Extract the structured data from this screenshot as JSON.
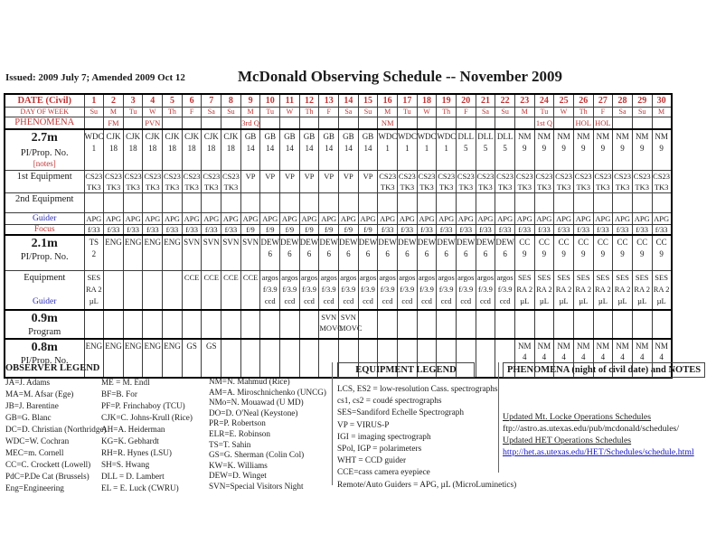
{
  "colors": {
    "red": "#c03434",
    "blue": "#2a2ab8",
    "link": "#1414c8",
    "ink": "#1c1c1c"
  },
  "header": {
    "issued": "Issued: 2009 July 7; Amended 2009 Oct 12",
    "title": "McDonald Observing Schedule -- November 2009"
  },
  "schedule": {
    "rows": [
      {
        "id": "date",
        "cls": "r-date",
        "label": [
          {
            "t": "DATE (Civil)",
            "c": "lr"
          }
        ],
        "cells": [
          "1",
          "2",
          "3",
          "4",
          "5",
          "6",
          "7",
          "8",
          "9",
          "10",
          "11",
          "12",
          "13",
          "14",
          "15",
          "16",
          "17",
          "18",
          "19",
          "20",
          "21",
          "22",
          "23",
          "24",
          "25",
          "26",
          "27",
          "28",
          "29",
          "30"
        ]
      },
      {
        "id": "dow",
        "cls": "r-dow",
        "label": [
          {
            "t": "DAY OF WEEK",
            "c": "lr xs"
          }
        ],
        "cells": [
          "Su",
          "M",
          "Tu",
          "W",
          "Th",
          "F",
          "Sa",
          "Su",
          "M",
          "Tu",
          "W",
          "Th",
          "F",
          "Sa",
          "Su",
          "M",
          "Tu",
          "W",
          "Th",
          "F",
          "Sa",
          "Su",
          "M",
          "Tu",
          "W",
          "Th",
          "F",
          "Sa",
          "Su",
          "M"
        ]
      },
      {
        "id": "phenomena",
        "cls": "r-phen",
        "label": [
          {
            "t": "PHENOMENA",
            "c": "lr"
          }
        ],
        "cells": [
          "",
          "FM",
          "",
          "PVN",
          "",
          "",
          "",
          "",
          "3rd Q",
          "",
          "",
          "",
          "",
          "",
          "",
          "NM",
          "",
          "",
          "",
          "",
          "",
          "",
          "",
          "1st Q",
          "",
          "HOL",
          "HOL",
          "",
          "",
          ""
        ]
      },
      {
        "id": "pi27",
        "cls": "r-pi27",
        "label": [
          {
            "t": "2.7m",
            "c": "lbig"
          },
          {
            "t": "PI/Prop. No.",
            "c": "lmed"
          },
          {
            "t": "[notes]",
            "c": "lnotes"
          }
        ],
        "cells": [
          "WDC\n1",
          "CJK\n18",
          "CJK\n18",
          "CJK\n18",
          "CJK\n18",
          "CJK\n18",
          "CJK\n18",
          "CJK\n18",
          "GB\n14",
          "GB\n14",
          "GB\n14",
          "GB\n14",
          "GB\n14",
          "GB\n14",
          "GB\n14",
          "WDC\n1",
          "WDC\n1",
          "WDC\n1",
          "WDC\n1",
          "DLL\n5",
          "DLL\n5",
          "DLL\n5",
          "NM\n9",
          "NM\n9",
          "NM\n9",
          "NM\n9",
          "NM\n9",
          "NM\n9",
          "NM\n9",
          "NM\n9"
        ]
      },
      {
        "id": "eq1",
        "cls": "r-eq1",
        "label": [
          {
            "t": "1st Equipment",
            "c": "lmed"
          }
        ],
        "cells": [
          "CS23\nTK3",
          "CS23\nTK3",
          "CS23\nTK3",
          "CS23\nTK3",
          "CS23\nTK3",
          "CS23\nTK3",
          "CS23\nTK3",
          "CS23\nTK3",
          "VP",
          "VP",
          "VP",
          "VP",
          "VP",
          "VP",
          "VP",
          "CS23\nTK3",
          "CS23\nTK3",
          "CS23\nTK3",
          "CS23\nTK3",
          "CS23\nTK3",
          "CS23\nTK3",
          "CS23\nTK3",
          "CS23\nTK3",
          "CS23\nTK3",
          "CS23\nTK3",
          "CS23\nTK3",
          "CS23\nTK3",
          "CS23\nTK3",
          "CS23\nTK3",
          "CS23\nTK3"
        ]
      },
      {
        "id": "eq2",
        "cls": "r-eq2",
        "label": [
          {
            "t": "2nd Equipment",
            "c": "lmed"
          }
        ],
        "cells": [
          "",
          "",
          "",
          "",
          "",
          "",
          "",
          "",
          "",
          "",
          "",
          "",
          "",
          "",
          "",
          "",
          "",
          "",
          "",
          "",
          "",
          "",
          "",
          "",
          "",
          "",
          "",
          "",
          "",
          ""
        ]
      },
      {
        "id": "guider27",
        "cls": "r-guider",
        "label": [
          {
            "t": "Guider",
            "c": "lblue"
          }
        ],
        "cells": [
          "APG",
          "APG",
          "APG",
          "APG",
          "APG",
          "APG",
          "APG",
          "APG",
          "APG",
          "APG",
          "APG",
          "APG",
          "APG",
          "APG",
          "APG",
          "APG",
          "APG",
          "APG",
          "APG",
          "APG",
          "APG",
          "APG",
          "APG",
          "APG",
          "APG",
          "APG",
          "APG",
          "APG",
          "APG",
          "APG"
        ]
      },
      {
        "id": "focus27",
        "cls": "r-focus",
        "label": [
          {
            "t": "Focus",
            "c": "lfocus"
          }
        ],
        "cells": [
          "f/33",
          "f/33",
          "f/33",
          "f/33",
          "f/33",
          "f/33",
          "f/33",
          "f/33",
          "f/9",
          "f/9",
          "f/9",
          "f/9",
          "f/9",
          "f/9",
          "f/9",
          "f/33",
          "f/33",
          "f/33",
          "f/33",
          "f/33",
          "f/33",
          "f/33",
          "f/33",
          "f/33",
          "f/33",
          "f/33",
          "f/33",
          "f/33",
          "f/33",
          "f/33"
        ]
      },
      {
        "id": "pi21",
        "cls": "r-pi21",
        "label": [
          {
            "t": "2.1m",
            "c": "lbig"
          },
          {
            "t": "PI/Prop. No.",
            "c": "lmed"
          }
        ],
        "cells": [
          "TS\n2",
          "ENG",
          "ENG",
          "ENG",
          "ENG",
          "SVN",
          "SVN",
          "SVN",
          "SVN",
          "DEW\n6",
          "DEW\n6",
          "DEW\n6",
          "DEW\n6",
          "DEW\n6",
          "DEW\n6",
          "DEW\n6",
          "DEW\n6",
          "DEW\n6",
          "DEW\n6",
          "DEW\n6",
          "DEW\n6",
          "DEW\n6",
          "CC\n9",
          "CC\n9",
          "CC\n9",
          "CC\n9",
          "CC\n9",
          "CC\n9",
          "CC\n9",
          "CC\n9"
        ]
      },
      {
        "id": "eq21",
        "cls": "r-eq21",
        "label": [
          {
            "t": "Equipment",
            "c": "lmed"
          },
          {
            "t": "Guider",
            "c": "lblue lgap"
          }
        ],
        "cells": [
          "SES\nRA 2\nµL",
          "",
          "",
          "",
          "",
          "CCE",
          "CCE",
          "CCE",
          "CCE",
          "argos\nf/3.9\nccd",
          "argos\nf/3.9\nccd",
          "argos\nf/3.9\nccd",
          "argos\nf/3.9\nccd",
          "argos\nf/3.9\nccd",
          "argos\nf/3.9\nccd",
          "argos\nf/3.9\nccd",
          "argos\nf/3.9\nccd",
          "argos\nf/3.9\nccd",
          "argos\nf/3.9\nccd",
          "argos\nf/3.9\nccd",
          "argos\nf/3.9\nccd",
          "argos\nf/3.9\nccd",
          "SES\nRA 2\nµL",
          "SES\nRA 2\nµL",
          "SES\nRA 2\nµL",
          "SES\nRA 2\nµL",
          "SES\nRA 2\nµL",
          "SES\nRA 2\nµL",
          "SES\nRA 2\nµL",
          "SES\nRA 2\nµL"
        ]
      },
      {
        "id": "p09",
        "cls": "r-p09",
        "label": [
          {
            "t": "0.9m",
            "c": "lbig"
          },
          {
            "t": "Program",
            "c": "lmed"
          }
        ],
        "cells": [
          "",
          "",
          "",
          "",
          "",
          "",
          "",
          "",
          "",
          "",
          "",
          "",
          "SVN\nMOVC",
          "SVN\nMOVC",
          "",
          "",
          "",
          "",
          "",
          "",
          "",
          "",
          "",
          "",
          "",
          "",
          "",
          "",
          "",
          ""
        ]
      },
      {
        "id": "pi08",
        "cls": "r-pi08",
        "label": [
          {
            "t": "0.8m",
            "c": "lbig"
          },
          {
            "t": "PI/Prop. No.",
            "c": "lmed"
          }
        ],
        "cells": [
          "ENG",
          "ENG",
          "ENG",
          "ENG",
          "ENG",
          "GS",
          "GS",
          "",
          "",
          "",
          "",
          "",
          "",
          "",
          "",
          "",
          "",
          "",
          "",
          "",
          "",
          "",
          "NM\n4",
          "NM\n4",
          "NM\n4",
          "NM\n4",
          "NM\n4",
          "NM\n4",
          "NM\n4",
          "NM\n4"
        ]
      }
    ]
  },
  "observer_legend": {
    "title": "OBSERVER LEGEND",
    "columns": [
      [
        "JA=J. Adams",
        "MA=M. Afsar (Ege)",
        "JB=J. Barentine",
        "GB=G. Blanc",
        "DC=D. Christian (Northridge)",
        "WDC=W. Cochran",
        "MEC=m. Cornell",
        "CC=C. Crockett (Lowell)",
        "PdC=P.De Cat (Brussels)",
        "Eng=Engineering"
      ],
      [
        "ME = M. Endl",
        "BF=B. For",
        "PF=P. Frinchaboy (TCU)",
        "CJK=C. Johns-Krull (Rice)",
        "AH=A. Heiderman",
        "KG=K. Gebhardt",
        "RH=R. Hynes (LSU)",
        "SH=S. Hwang",
        "DLL = D. Lambert",
        "EL = E. Luck (CWRU)"
      ],
      [
        "NM=N. Mahmud (Rice)",
        "AM=A. Miroschnichenko (UNCG)",
        "NMo=N. Mouawad (U MD)",
        "DO=D. O'Neal (Keystone)",
        "PR=P. Robertson",
        "ELR=E. Robinson",
        "TS=T. Sahin",
        "GS=G. Sherman (Colin Col)",
        "KW=K. Williams",
        "DEW=D. Winget",
        "SVN=Special Visitors Night"
      ]
    ]
  },
  "equipment_legend": {
    "title": "EQUIPMENT LEGEND",
    "lines": [
      "LCS,  ES2 = low-resolution Cass. spectrographs",
      "cs1, cs2 = coudé spectrographs",
      "SES=Sandiford Echelle Spectrograph",
      "VP = VIRUS-P",
      "IGI = imaging spectrograph",
      "SPol, IGP = polarimeters",
      "WHT = CCD guider",
      "CCE=cass camera eyepiece",
      "Remote/Auto Guiders  =  APG, µL (MicroLuminetics)"
    ]
  },
  "notes_panel": {
    "title": "PHENOMENA (night of civil date) and NOTES",
    "lines": [
      {
        "text": "Updated Mt. Locke Operations Schedules",
        "style": "u",
        "interactable": true
      },
      {
        "text": "ftp://astro.as.utexas.edu/pub/mcdonald/schedules/",
        "style": "plain",
        "interactable": false
      },
      {
        "text": "Updated HET Operations Schedules",
        "style": "u",
        "interactable": true
      },
      {
        "text": "http://het.as.utexas.edu/HET/Schedules/schedule.html",
        "style": "link",
        "interactable": true
      }
    ]
  }
}
